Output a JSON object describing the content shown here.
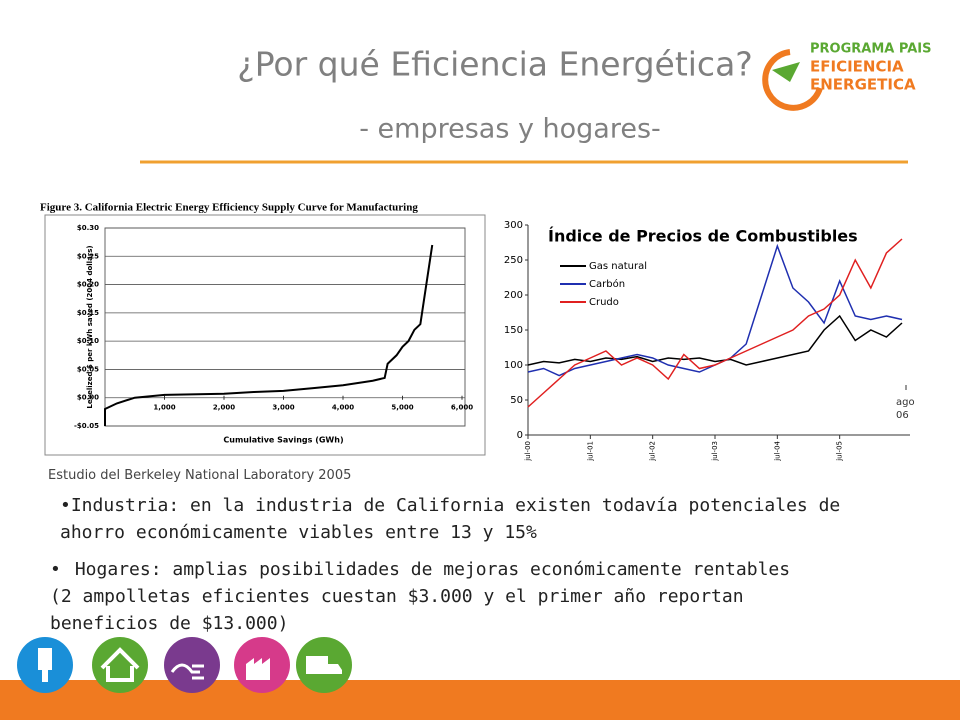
{
  "header": {
    "title": "¿Por qué Eficiencia Energética?",
    "subtitle": "- empresas y hogares-"
  },
  "logo": {
    "line1": "PROGRAMA PAIS",
    "line2": "EFICIENCIA",
    "line3": "ENERGETICA"
  },
  "chart_data": [
    {
      "type": "line",
      "title": "Figure 3.  California Electric Energy Efficiency Supply Curve for Manufacturing",
      "y_label": "Levelized $ per kWh saved (2004 dollars)",
      "x_label": "Cumulative Savings (GWh)",
      "color": "#000000",
      "grid": true,
      "x": [
        0,
        0,
        200,
        500,
        1000,
        2000,
        2500,
        3000,
        3500,
        4000,
        4500,
        4700,
        4750,
        4900,
        5000,
        5100,
        5200,
        5300,
        5400,
        5500
      ],
      "values": [
        -0.05,
        -0.02,
        -0.01,
        0,
        0.005,
        0.007,
        0.01,
        0.012,
        0.017,
        0.022,
        0.03,
        0.035,
        0.06,
        0.075,
        0.09,
        0.1,
        0.12,
        0.13,
        0.2,
        0.27
      ],
      "xlim": [
        0,
        6000
      ],
      "xticks": [
        {
          "value": 1000,
          "label": "1,000"
        },
        {
          "value": 2000,
          "label": "2,000"
        },
        {
          "value": 3000,
          "label": "3,000"
        },
        {
          "value": 4000,
          "label": "4,000"
        },
        {
          "value": 5000,
          "label": "5,000"
        },
        {
          "value": 6000,
          "label": "6,000"
        }
      ],
      "ylim": [
        -0.05,
        0.3
      ],
      "yticks": [
        {
          "value": -0.05,
          "label": "-$0.05"
        },
        {
          "value": 0,
          "label": "$0.00"
        },
        {
          "value": 0.05,
          "label": "$0.05"
        },
        {
          "value": 0.1,
          "label": "$0.10"
        },
        {
          "value": 0.15,
          "label": "$0.15"
        },
        {
          "value": 0.2,
          "label": "$0.20"
        },
        {
          "value": 0.25,
          "label": "$0.25"
        },
        {
          "value": 0.3,
          "label": "$0.30"
        }
      ]
    },
    {
      "type": "line",
      "title": "Índice de Precios de Combustibles",
      "annotation": "ago 06",
      "categories": [
        "jul-00",
        null,
        null,
        null,
        "jul-01",
        null,
        null,
        null,
        "jul-02",
        null,
        null,
        null,
        "jul-03",
        null,
        null,
        null,
        "jul-04",
        null,
        null,
        null,
        "jul-05",
        null,
        null,
        null,
        null
      ],
      "series": [
        {
          "name": "Gas natural",
          "color": "#000000",
          "values": [
            100,
            105,
            103,
            108,
            105,
            110,
            108,
            112,
            105,
            110,
            108,
            110,
            105,
            108,
            100,
            105,
            110,
            115,
            120,
            150,
            170,
            135,
            150,
            140,
            160
          ]
        },
        {
          "name": "Carbón",
          "color": "#1f2fb0",
          "values": [
            90,
            95,
            85,
            95,
            100,
            105,
            110,
            115,
            110,
            100,
            95,
            90,
            100,
            110,
            130,
            200,
            270,
            210,
            190,
            160,
            220,
            170,
            165,
            170,
            165
          ]
        },
        {
          "name": "Crudo",
          "color": "#e02020",
          "values": [
            40,
            60,
            80,
            100,
            110,
            120,
            100,
            110,
            100,
            80,
            115,
            95,
            100,
            110,
            120,
            130,
            140,
            150,
            170,
            180,
            200,
            250,
            210,
            260,
            280
          ]
        }
      ],
      "ylim": [
        0,
        300
      ],
      "yticks": [
        0,
        50,
        100,
        150,
        200,
        250,
        300
      ]
    }
  ],
  "caption": "Estudio del Berkeley National Laboratory 2005",
  "bullets": [
    [
      "Industria: en la industria de California existen todavía potenciales de",
      "ahorro económicamente viables entre 13 y 15%"
    ],
    [
      "Hogares: amplias posibilidades de mejoras económicamente rentables",
      "(2 ampolletas eficientes cuestan $3.000 y el primer año reportan",
      "beneficios de $13.000)"
    ]
  ]
}
